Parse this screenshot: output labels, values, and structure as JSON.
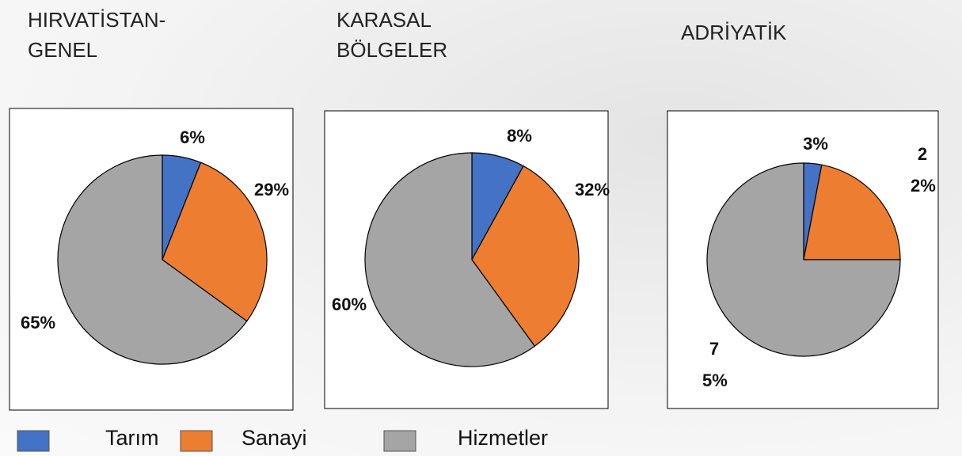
{
  "chart_data": [
    {
      "type": "pie",
      "title": "HIRVATİSTAN-\nGENEL",
      "categories": [
        "Tarım",
        "Sanayi",
        "Hizmetler"
      ],
      "values": [
        6,
        29,
        65
      ],
      "value_labels": [
        "6%",
        "29%",
        "65%"
      ],
      "colors": [
        "#4472c4",
        "#ed7d31",
        "#a5a5a5"
      ]
    },
    {
      "type": "pie",
      "title": "KARASAL\nBÖLGELER",
      "categories": [
        "Tarım",
        "Sanayi",
        "Hizmetler"
      ],
      "values": [
        8,
        32,
        60
      ],
      "value_labels": [
        "8%",
        "32%",
        "60%"
      ],
      "colors": [
        "#4472c4",
        "#ed7d31",
        "#a5a5a5"
      ]
    },
    {
      "type": "pie",
      "title": "ADRİYATİK",
      "categories": [
        "Tarım",
        "Sanayi",
        "Hizmetler"
      ],
      "values": [
        3,
        22,
        75
      ],
      "value_labels": [
        "3%",
        "22%",
        "75%"
      ],
      "colors": [
        "#4472c4",
        "#ed7d31",
        "#a5a5a5"
      ]
    }
  ]
}
